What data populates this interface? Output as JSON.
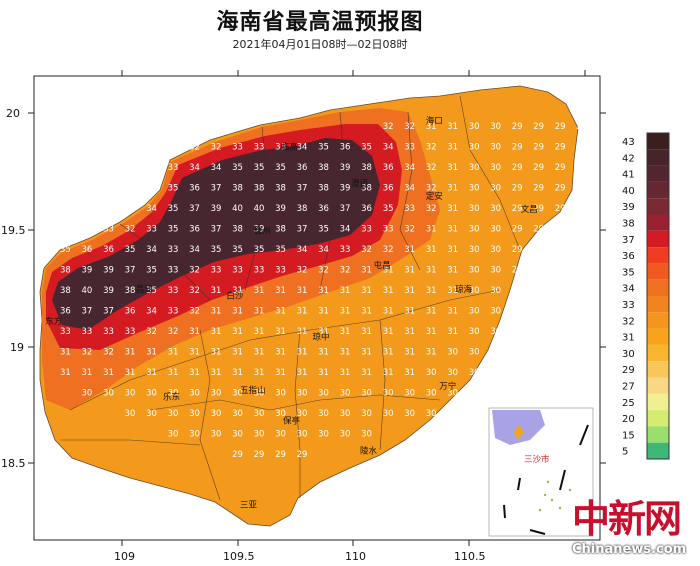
{
  "title": "海南省最高温预报图",
  "subtitle": "2021年04月01日08时—02日08时",
  "axes": {
    "x_ticks": [
      "109",
      "109.5",
      "110",
      "110.5"
    ],
    "y_ticks": [
      "20",
      "19.5",
      "19",
      "18.5"
    ],
    "x_range": [
      108.6,
      111.1
    ],
    "y_range": [
      18.1,
      20.25
    ]
  },
  "legend": {
    "levels": [
      "43",
      "42",
      "41",
      "40",
      "39",
      "38",
      "37",
      "36",
      "35",
      "34",
      "33",
      "32",
      "31",
      "30",
      "29",
      "27",
      "25",
      "20",
      "15",
      "5"
    ],
    "colors": [
      "#3b1e1e",
      "#47232a",
      "#532530",
      "#652733",
      "#7a2a33",
      "#9a2230",
      "#d51b22",
      "#f03c20",
      "#f05a20",
      "#ee7020",
      "#f28420",
      "#f5951d",
      "#f7a41c",
      "#f8b530",
      "#f9c65a",
      "#f8d786",
      "#f2ee92",
      "#d6ec70",
      "#9adf6d",
      "#3fb877"
    ]
  },
  "cities": [
    {
      "name": "海口",
      "lon": 110.33,
      "lat": 20.03
    },
    {
      "name": "临高",
      "lon": 109.69,
      "lat": 19.91
    },
    {
      "name": "澄迈",
      "lon": 110.0,
      "lat": 19.74
    },
    {
      "name": "文昌",
      "lon": 110.75,
      "lat": 19.62
    },
    {
      "name": "定安",
      "lon": 110.33,
      "lat": 19.68
    },
    {
      "name": "儋州",
      "lon": 109.57,
      "lat": 19.52
    },
    {
      "name": "屯昌",
      "lon": 110.1,
      "lat": 19.36
    },
    {
      "name": "琼海",
      "lon": 110.46,
      "lat": 19.25
    },
    {
      "name": "东方",
      "lon": 108.65,
      "lat": 19.1
    },
    {
      "name": "昌江",
      "lon": 109.05,
      "lat": 19.25
    },
    {
      "name": "白沙",
      "lon": 109.45,
      "lat": 19.22
    },
    {
      "name": "琼中",
      "lon": 109.83,
      "lat": 19.03
    },
    {
      "name": "五指山",
      "lon": 109.51,
      "lat": 18.78
    },
    {
      "name": "万宁",
      "lon": 110.39,
      "lat": 18.8
    },
    {
      "name": "乐东",
      "lon": 109.17,
      "lat": 18.75
    },
    {
      "name": "保亭",
      "lon": 109.7,
      "lat": 18.64
    },
    {
      "name": "陵水",
      "lon": 110.04,
      "lat": 18.5
    },
    {
      "name": "三亚",
      "lon": 109.51,
      "lat": 18.25
    }
  ],
  "inset": {
    "label": "三沙市"
  },
  "watermark": {
    "cn": "中新网",
    "en": "Chinanews.com"
  },
  "grid": {
    "lon0": 108.62,
    "lat0": 20.1,
    "dlon": 0.095,
    "dlat": 0.095,
    "rows": [
      "...........................3333333..",
      "................3333433333333333332.",
      "......33333333333333333333333333332.",
      "...33333333333333333333333333333333.",
      "..333333333333333333333333333333333.",
      ".33333333333333333333333333333333...",
      "3333333333333333333333333333333.....",
      "333333333333333333333333333333......",
      "333333333333333333333333333333......",
      "33333333333333333333333333333.......",
      "333333333333333333333333333.........",
      "3333333333333333333333333...........",
      "333333333333333333333333............",
      ".333333333333333333333..............",
      "..3333333333333333333...............",
      "....333333333333333.................",
      "......3333333333....................",
      ".........3333.......................",
      "...................................."
    ]
  }
}
